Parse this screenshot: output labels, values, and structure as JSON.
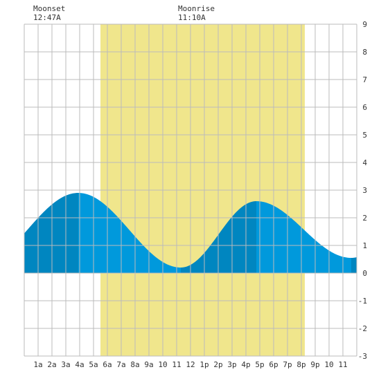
{
  "header": {
    "moonset": {
      "label": "Moonset",
      "time": "12:47A"
    },
    "moonrise": {
      "label": "Moonrise",
      "time": "11:10A"
    }
  },
  "colors": {
    "daylight": "#f0e68c",
    "tide_rising": "#0086c0",
    "tide_falling": "#0099dc",
    "grid": "#bbbbbb",
    "background": "#ffffff",
    "text": "#333333"
  },
  "chart_data": {
    "type": "area",
    "x_unit": "hour",
    "xlim": [
      0,
      24
    ],
    "ylim": [
      -3,
      9
    ],
    "grid": true,
    "x_ticks": [
      {
        "x": 1,
        "label": "1a"
      },
      {
        "x": 2,
        "label": "2a"
      },
      {
        "x": 3,
        "label": "3a"
      },
      {
        "x": 4,
        "label": "4a"
      },
      {
        "x": 5,
        "label": "5a"
      },
      {
        "x": 6,
        "label": "6a"
      },
      {
        "x": 7,
        "label": "7a"
      },
      {
        "x": 8,
        "label": "8a"
      },
      {
        "x": 9,
        "label": "9a"
      },
      {
        "x": 10,
        "label": "10"
      },
      {
        "x": 11,
        "label": "11"
      },
      {
        "x": 12,
        "label": "12"
      },
      {
        "x": 13,
        "label": "1p"
      },
      {
        "x": 14,
        "label": "2p"
      },
      {
        "x": 15,
        "label": "3p"
      },
      {
        "x": 16,
        "label": "4p"
      },
      {
        "x": 17,
        "label": "5p"
      },
      {
        "x": 18,
        "label": "6p"
      },
      {
        "x": 19,
        "label": "7p"
      },
      {
        "x": 20,
        "label": "8p"
      },
      {
        "x": 21,
        "label": "9p"
      },
      {
        "x": 22,
        "label": "10"
      },
      {
        "x": 23,
        "label": "11"
      }
    ],
    "y_ticks": [
      -3,
      -2,
      -1,
      0,
      1,
      2,
      3,
      4,
      5,
      6,
      7,
      8,
      9
    ],
    "daylight": {
      "start": 5.5,
      "end": 20.25
    },
    "tide_extremes": [
      {
        "time": 3.9,
        "height": 2.9,
        "type": "high"
      },
      {
        "time": 11.3,
        "height": 0.2,
        "type": "low"
      },
      {
        "time": 16.75,
        "height": 2.6,
        "type": "high"
      },
      {
        "time": 23.6,
        "height": 0.55,
        "type": "low"
      }
    ],
    "tide_start": {
      "time": 0,
      "height": 0.9
    }
  }
}
